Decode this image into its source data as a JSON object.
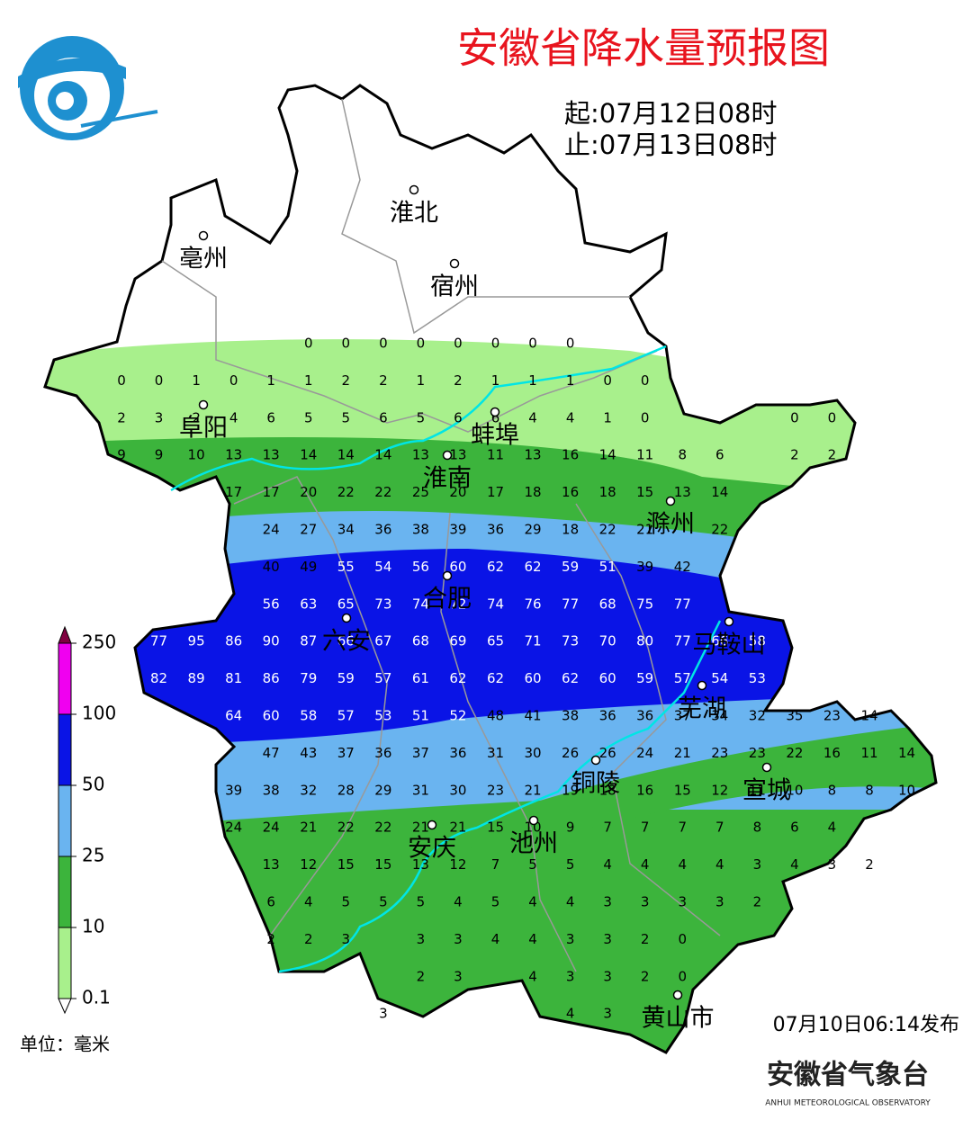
{
  "header": {
    "title": "安徽省降水量预报图",
    "start": "起:07月12日08时",
    "end": "止:07月13日08时"
  },
  "footer": {
    "issued": "07月10日06:14发布",
    "unit": "单位：毫米",
    "org": "安徽省气象台",
    "org_en": "ANHUI METEOROLOGICAL OBSERVATORY"
  },
  "legend": {
    "levels": [
      0.1,
      10,
      25,
      50,
      100,
      250
    ],
    "colors": [
      "#a8f08c",
      "#3cb43c",
      "#6ab4f0",
      "#0a14e6",
      "#f000f0"
    ]
  },
  "cities": [
    "淮北",
    "亳州",
    "宿州",
    "阜阳",
    "蚌埠",
    "淮南",
    "滁州",
    "合肥",
    "六安",
    "马鞍山",
    "芜湖",
    "铜陵",
    "宣城",
    "安庆",
    "池州",
    "黄山市"
  ],
  "grid": [
    [
      null,
      null,
      null,
      null,
      null,
      0,
      0,
      0,
      0,
      0,
      0,
      0,
      0,
      null,
      null,
      null,
      null,
      null,
      null,
      null,
      null,
      null
    ],
    [
      0,
      0,
      1,
      0,
      1,
      1,
      2,
      2,
      1,
      2,
      1,
      1,
      1,
      0,
      0,
      null,
      null,
      null,
      null,
      null,
      null,
      null
    ],
    [
      2,
      3,
      2,
      4,
      6,
      5,
      5,
      6,
      5,
      6,
      6,
      4,
      4,
      1,
      0,
      null,
      null,
      null,
      0,
      0,
      null,
      null
    ],
    [
      9,
      9,
      10,
      13,
      13,
      14,
      14,
      14,
      13,
      13,
      11,
      13,
      16,
      14,
      11,
      8,
      6,
      null,
      2,
      2,
      null,
      null
    ],
    [
      null,
      null,
      null,
      17,
      17,
      20,
      22,
      22,
      25,
      20,
      17,
      18,
      16,
      18,
      15,
      13,
      14,
      null,
      null,
      null,
      null,
      null
    ],
    [
      null,
      null,
      null,
      null,
      24,
      27,
      34,
      36,
      38,
      39,
      36,
      29,
      18,
      22,
      21,
      null,
      22,
      null,
      null,
      null,
      null,
      null
    ],
    [
      null,
      null,
      null,
      null,
      40,
      49,
      55,
      54,
      56,
      60,
      62,
      62,
      59,
      51,
      39,
      42,
      null,
      null,
      null,
      null,
      null,
      null
    ],
    [
      null,
      null,
      null,
      null,
      56,
      63,
      65,
      73,
      74,
      72,
      74,
      76,
      77,
      68,
      75,
      77,
      null,
      null,
      null,
      null,
      null,
      null
    ],
    [
      null,
      77,
      95,
      86,
      90,
      87,
      66,
      67,
      68,
      69,
      65,
      71,
      73,
      70,
      80,
      77,
      66,
      58,
      null,
      null,
      null,
      null
    ],
    [
      null,
      82,
      89,
      81,
      86,
      79,
      59,
      57,
      61,
      62,
      62,
      60,
      62,
      60,
      59,
      57,
      54,
      53,
      null,
      null,
      null,
      null
    ],
    [
      null,
      null,
      null,
      64,
      60,
      58,
      57,
      53,
      51,
      52,
      48,
      41,
      38,
      36,
      36,
      37,
      34,
      32,
      35,
      23,
      14,
      null
    ],
    [
      null,
      null,
      null,
      null,
      47,
      43,
      37,
      36,
      37,
      36,
      31,
      30,
      26,
      26,
      24,
      21,
      23,
      23,
      22,
      16,
      11,
      14
    ],
    [
      null,
      null,
      null,
      39,
      38,
      32,
      28,
      29,
      31,
      30,
      23,
      21,
      19,
      18,
      16,
      15,
      12,
      11,
      10,
      8,
      8,
      10
    ],
    [
      null,
      null,
      null,
      24,
      24,
      21,
      22,
      22,
      21,
      21,
      15,
      10,
      9,
      7,
      7,
      7,
      7,
      8,
      6,
      4,
      null,
      null
    ],
    [
      null,
      null,
      null,
      null,
      13,
      12,
      15,
      15,
      13,
      12,
      7,
      5,
      5,
      4,
      4,
      4,
      4,
      3,
      4,
      3,
      2,
      null
    ],
    [
      null,
      null,
      null,
      null,
      6,
      4,
      5,
      5,
      5,
      4,
      5,
      4,
      4,
      3,
      3,
      3,
      3,
      2,
      null,
      null,
      null,
      null
    ],
    [
      null,
      null,
      null,
      null,
      2,
      2,
      3,
      null,
      3,
      3,
      4,
      4,
      3,
      3,
      2,
      0,
      null,
      null,
      null,
      null,
      null,
      null
    ],
    [
      null,
      null,
      null,
      null,
      null,
      null,
      null,
      null,
      2,
      3,
      null,
      4,
      3,
      3,
      2,
      0,
      null,
      null,
      null,
      null,
      null,
      null
    ],
    [
      null,
      null,
      null,
      null,
      null,
      null,
      null,
      3,
      null,
      null,
      null,
      null,
      4,
      3,
      null,
      null,
      null,
      null,
      null,
      null,
      null,
      null
    ]
  ]
}
